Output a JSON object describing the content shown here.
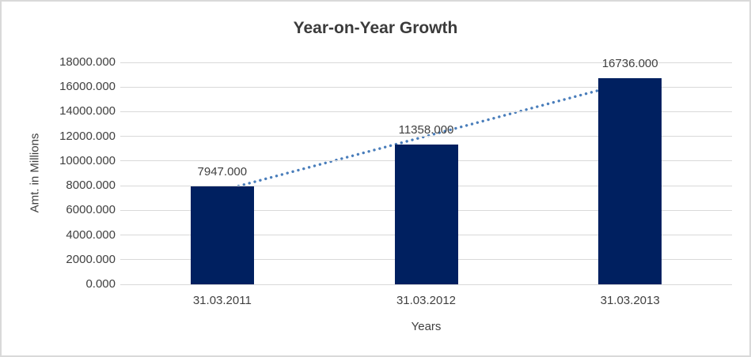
{
  "chart_data": {
    "type": "bar",
    "title": "Year-on-Year Growth",
    "xlabel": "Years",
    "ylabel": "Amt. in Millions",
    "categories": [
      "31.03.2011",
      "31.03.2012",
      "31.03.2013"
    ],
    "values": [
      7947,
      11358,
      16736
    ],
    "data_labels": [
      "7947.000",
      "11358.000",
      "16736.000"
    ],
    "yticks": [
      "0.000",
      "2000.000",
      "4000.000",
      "6000.000",
      "8000.000",
      "10000.000",
      "12000.000",
      "14000.000",
      "16000.000",
      "18000.000"
    ],
    "ylim": [
      0,
      18000
    ],
    "grid": true,
    "legend": "none",
    "trendline": {
      "type": "linear",
      "style": "dotted"
    },
    "colors": {
      "bar": "#002060",
      "trendline": "#4a7ebb",
      "gridline": "#d9d9d9",
      "frame_border": "#d9d9d9",
      "text": "#404040",
      "title_text": "#3b3b3b"
    }
  }
}
